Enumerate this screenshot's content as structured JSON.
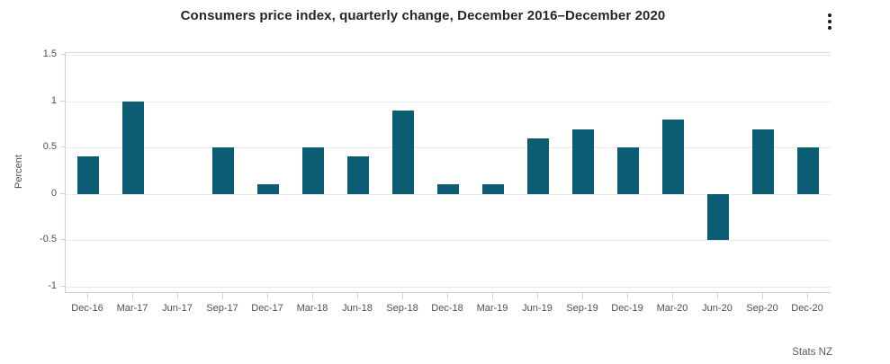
{
  "header": {
    "title": "Consumers price index, quarterly change, December 2016–December 2020"
  },
  "chart_data": {
    "type": "bar",
    "title": "Consumers price index, quarterly change, December 2016–December 2020",
    "xlabel": "",
    "ylabel": "Percent",
    "categories": [
      "Dec-16",
      "Mar-17",
      "Jun-17",
      "Sep-17",
      "Dec-17",
      "Mar-18",
      "Jun-18",
      "Sep-18",
      "Dec-18",
      "Mar-19",
      "Jun-19",
      "Sep-19",
      "Dec-19",
      "Mar-20",
      "Jun-20",
      "Sep-20",
      "Dec-20"
    ],
    "values": [
      0.4,
      1.0,
      0.0,
      0.5,
      0.1,
      0.5,
      0.4,
      0.9,
      0.1,
      0.1,
      0.6,
      0.7,
      0.5,
      0.8,
      -0.5,
      0.7,
      0.5
    ],
    "yticks": [
      1.5,
      1,
      0.5,
      0,
      -0.5,
      -1
    ],
    "ylim": [
      -1.06,
      1.52
    ],
    "grid": true,
    "legend": false
  },
  "colors": {
    "bar": "#0c5c74",
    "frame": "#c9d1e3",
    "frame_top": "#d6dbe8",
    "grid": "#e9e9ee",
    "axis_text": "#4d5058",
    "title_text": "#26262d",
    "source_text": "#585c64",
    "menu_icon": "#191919"
  },
  "icons": {
    "menu": "kebab-menu-icon"
  },
  "footer": {
    "source": "Stats NZ"
  }
}
